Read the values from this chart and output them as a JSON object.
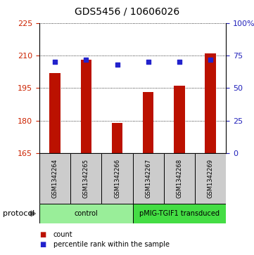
{
  "title": "GDS5456 / 10606026",
  "samples": [
    "GSM1342264",
    "GSM1342265",
    "GSM1342266",
    "GSM1342267",
    "GSM1342268",
    "GSM1342269"
  ],
  "counts": [
    202,
    208,
    179,
    193,
    196,
    211
  ],
  "percentile_ranks": [
    70,
    72,
    68,
    70,
    70,
    72
  ],
  "ylim_left": [
    165,
    225
  ],
  "ylim_right": [
    0,
    100
  ],
  "yticks_left": [
    165,
    180,
    195,
    210,
    225
  ],
  "yticks_right": [
    0,
    25,
    50,
    75,
    100
  ],
  "ytick_labels_right": [
    "0",
    "25",
    "50",
    "75",
    "100%"
  ],
  "bar_color": "#BB1100",
  "dot_color": "#2222CC",
  "bar_bottom": 165,
  "groups": [
    {
      "label": "control",
      "start": 0,
      "end": 3,
      "color": "#99EE99"
    },
    {
      "label": "pMIG-TGIF1 transduced",
      "start": 3,
      "end": 6,
      "color": "#44DD44"
    }
  ],
  "protocol_label": "protocol",
  "legend_items": [
    {
      "label": "count",
      "color": "#BB1100"
    },
    {
      "label": "percentile rank within the sample",
      "color": "#2222CC"
    }
  ],
  "background_color": "#FFFFFF",
  "left_tick_color": "#CC2200",
  "right_tick_color": "#2222BB",
  "sample_box_color": "#CCCCCC",
  "bar_width": 0.35
}
